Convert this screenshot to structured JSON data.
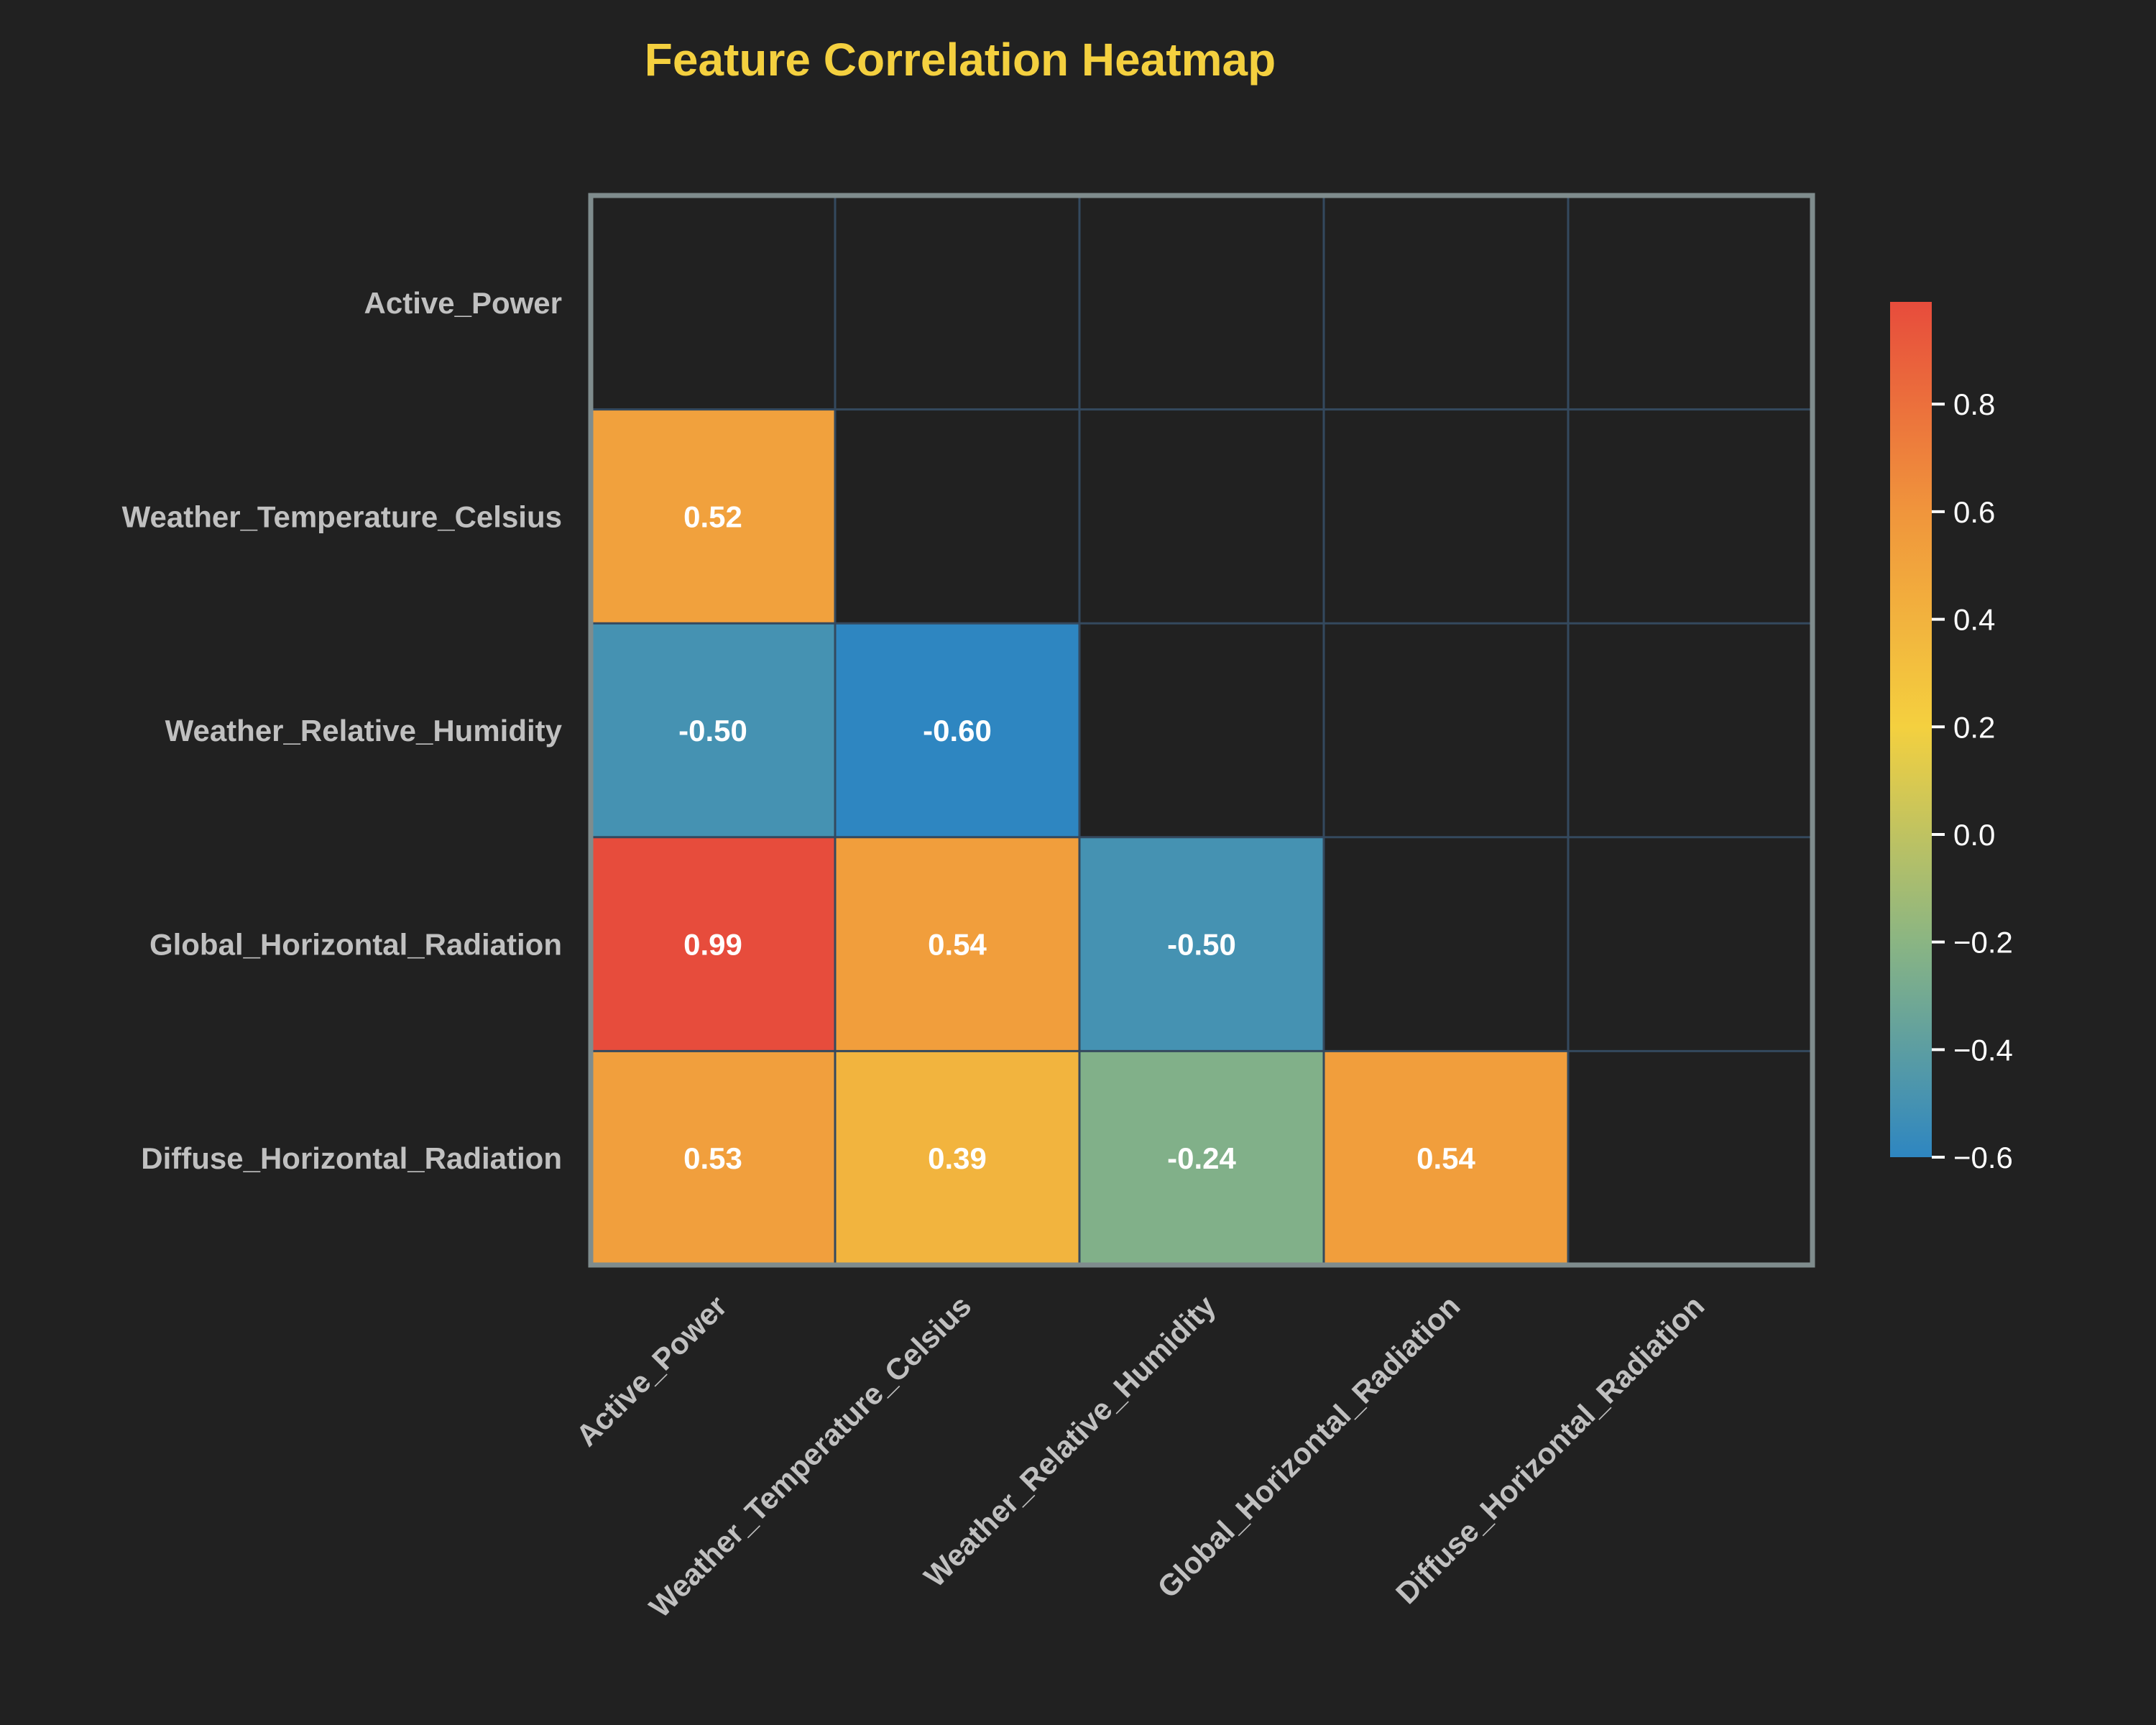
{
  "chart_data": {
    "type": "heatmap",
    "title": "Feature Correlation Heatmap",
    "variables": [
      "Active_Power",
      "Weather_Temperature_Celsius",
      "Weather_Relative_Humidity",
      "Global_Horizontal_Radiation",
      "Diffuse_Horizontal_Radiation"
    ],
    "mask": "upper-triangle-and-diagonal",
    "cells": [
      {
        "row": 1,
        "col": 0,
        "value": 0.52,
        "label": "0.52"
      },
      {
        "row": 2,
        "col": 0,
        "value": -0.5,
        "label": "-0.50"
      },
      {
        "row": 2,
        "col": 1,
        "value": -0.6,
        "label": "-0.60"
      },
      {
        "row": 3,
        "col": 0,
        "value": 0.99,
        "label": "0.99"
      },
      {
        "row": 3,
        "col": 1,
        "value": 0.54,
        "label": "0.54"
      },
      {
        "row": 3,
        "col": 2,
        "value": -0.5,
        "label": "-0.50"
      },
      {
        "row": 4,
        "col": 0,
        "value": 0.53,
        "label": "0.53"
      },
      {
        "row": 4,
        "col": 1,
        "value": 0.39,
        "label": "0.39"
      },
      {
        "row": 4,
        "col": 2,
        "value": -0.24,
        "label": "-0.24"
      },
      {
        "row": 4,
        "col": 3,
        "value": 0.54,
        "label": "0.54"
      }
    ],
    "colorbar": {
      "range": [
        -0.6,
        0.99
      ],
      "ticks": [
        0.8,
        0.6,
        0.4,
        0.2,
        0.0,
        -0.2,
        -0.4,
        -0.6
      ],
      "tick_labels": [
        "0.8",
        "0.6",
        "0.4",
        "0.2",
        "0.0",
        "−0.2",
        "−0.4",
        "−0.6"
      ],
      "colormap": [
        {
          "v": -0.6,
          "color": "#2e86c1"
        },
        {
          "v": -0.2,
          "color": "#8ab583"
        },
        {
          "v": 0.2,
          "color": "#f4d03f"
        },
        {
          "v": 0.6,
          "color": "#f0953c"
        },
        {
          "v": 0.99,
          "color": "#e74c3c"
        }
      ]
    },
    "colors": {
      "background": "#212121",
      "title": "#f4d03f",
      "labels": "#c0c0c0",
      "cell_text": "#ffffff",
      "grid": "#34495e",
      "frame": "#7f8c8d"
    }
  }
}
